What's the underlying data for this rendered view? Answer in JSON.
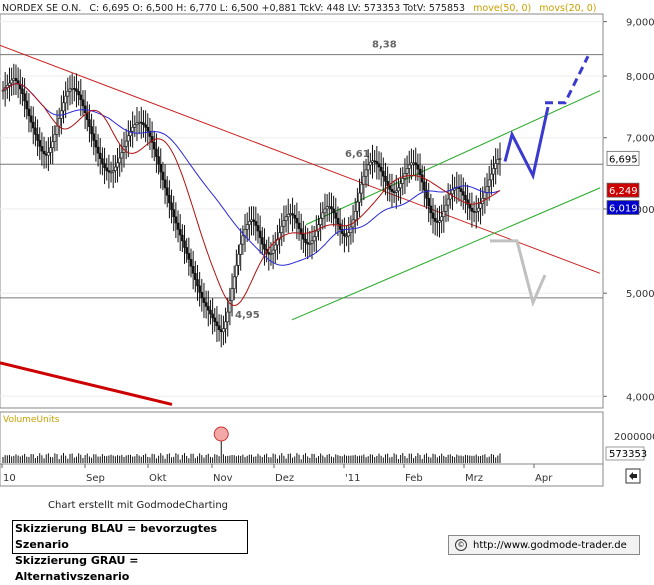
{
  "chart_data": {
    "type": "candlestick",
    "header": {
      "name": "NORDEX SE O.N.",
      "ohlc_text": "C: 6,695  O: 6,500  H: 6,770  L: 6,500  +0,881  TckV: 448  LV: 573353  TotV: 575853",
      "move_text": "move(50, 0)",
      "movs_text": "movs(20, 0)"
    },
    "y_axis": {
      "min": 3.9,
      "max": 9.15,
      "scale": "log",
      "ticks": [
        "9,000",
        "8,000",
        "7,000",
        "6,000",
        "5,000",
        "4,000"
      ],
      "tick_values": [
        9,
        8,
        7,
        6,
        5,
        4
      ]
    },
    "x_axis": {
      "labels": [
        "10",
        "Sep",
        "Okt",
        "Nov",
        "Dez",
        "'11",
        "Feb",
        "Mrz",
        "Apr"
      ]
    },
    "horizontal_levels": [
      {
        "value": 8.38,
        "label": "8,38"
      },
      {
        "value": 6.61,
        "label": "6,61"
      },
      {
        "value": 4.95,
        "label": "4,95"
      }
    ],
    "value_boxes": [
      {
        "value": 6.695,
        "label": "6,695",
        "bg": "#ffffff",
        "fg": "#000000"
      },
      {
        "value": 6.249,
        "label": "6,249",
        "bg": "#cc0000",
        "fg": "#ffffff"
      },
      {
        "value": 6.019,
        "label": "6,019",
        "bg": "#0000cc",
        "fg": "#ffffff"
      }
    ],
    "series_closes": [
      7.76,
      7.8,
      7.84,
      7.88,
      7.93,
      7.96,
      7.92,
      7.86,
      7.78,
      7.7,
      7.58,
      7.45,
      7.34,
      7.24,
      7.15,
      7.05,
      6.96,
      6.87,
      6.8,
      6.76,
      6.74,
      6.78,
      6.85,
      6.94,
      7.05,
      7.18,
      7.3,
      7.42,
      7.55,
      7.66,
      7.74,
      7.78,
      7.79,
      7.78,
      7.74,
      7.68,
      7.6,
      7.5,
      7.39,
      7.28,
      7.17,
      7.06,
      6.96,
      6.86,
      6.77,
      6.69,
      6.62,
      6.56,
      6.52,
      6.5,
      6.5,
      6.52,
      6.57,
      6.63,
      6.7,
      6.78,
      6.87,
      6.95,
      7.03,
      7.1,
      7.16,
      7.2,
      7.23,
      7.24,
      7.23,
      7.2,
      7.16,
      7.1,
      7.02,
      6.93,
      6.83,
      6.72,
      6.61,
      6.5,
      6.39,
      6.28,
      6.18,
      6.08,
      5.99,
      5.9,
      5.82,
      5.74,
      5.67,
      5.6,
      5.52,
      5.45,
      5.38,
      5.3,
      5.22,
      5.15,
      5.08,
      5.01,
      4.95,
      4.9,
      4.86,
      4.82,
      4.78,
      4.74,
      4.7,
      4.66,
      4.62,
      4.6,
      4.63,
      4.7,
      4.8,
      4.92,
      5.05,
      5.18,
      5.31,
      5.44,
      5.56,
      5.66,
      5.74,
      5.8,
      5.84,
      5.86,
      5.84,
      5.79,
      5.72,
      5.64,
      5.56,
      5.5,
      5.46,
      5.44,
      5.45,
      5.49,
      5.55,
      5.62,
      5.7,
      5.78,
      5.85,
      5.9,
      5.93,
      5.94,
      5.92,
      5.88,
      5.82,
      5.75,
      5.68,
      5.62,
      5.58,
      5.56,
      5.57,
      5.6,
      5.65,
      5.72,
      5.8,
      5.88,
      5.95,
      6.0,
      6.03,
      6.03,
      6.0,
      5.95,
      5.88,
      5.81,
      5.74,
      5.69,
      5.66,
      5.66,
      5.7,
      5.77,
      5.86,
      5.97,
      6.09,
      6.21,
      6.33,
      6.44,
      6.53,
      6.6,
      6.64,
      6.66,
      6.65,
      6.62,
      6.57,
      6.51,
      6.44,
      6.37,
      6.31,
      6.26,
      6.23,
      6.22,
      6.24,
      6.28,
      6.34,
      6.41,
      6.48,
      6.55,
      6.6,
      6.63,
      6.63,
      6.6,
      6.54,
      6.46,
      6.36,
      6.25,
      6.14,
      6.04,
      5.95,
      5.88,
      5.84,
      5.83,
      5.85,
      5.9,
      5.97,
      6.05,
      6.13,
      6.2,
      6.25,
      6.28,
      6.29,
      6.27,
      6.23,
      6.18,
      6.12,
      6.06,
      6.01,
      5.97,
      5.96,
      5.97,
      6.01,
      6.07,
      6.14,
      6.22,
      6.3,
      6.39,
      6.47,
      6.55,
      6.62,
      6.68,
      6.695
    ],
    "volume": {
      "label": "VolumeUnits",
      "tick": "2000000",
      "last_value": "573353"
    },
    "scenario_colors": {
      "blue": "#3a3ad0",
      "gray": "#c0c0c0"
    }
  },
  "credit": "Chart erstellt mit GodmodeCharting",
  "legend": {
    "line1": "Skizzierung BLAU = bevorzugtes Szenario",
    "line2": "Skizzierung GRAU = Alternativszenario"
  },
  "url": "http://www.godmode-trader.de"
}
